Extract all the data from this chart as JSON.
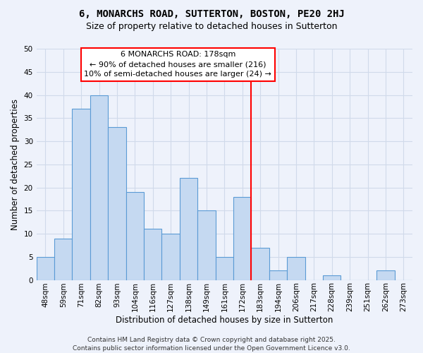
{
  "title": "6, MONARCHS ROAD, SUTTERTON, BOSTON, PE20 2HJ",
  "subtitle": "Size of property relative to detached houses in Sutterton",
  "xlabel": "Distribution of detached houses by size in Sutterton",
  "ylabel": "Number of detached properties",
  "footer_lines": [
    "Contains HM Land Registry data © Crown copyright and database right 2025.",
    "Contains public sector information licensed under the Open Government Licence v3.0."
  ],
  "bin_labels": [
    "48sqm",
    "59sqm",
    "71sqm",
    "82sqm",
    "93sqm",
    "104sqm",
    "116sqm",
    "127sqm",
    "138sqm",
    "149sqm",
    "161sqm",
    "172sqm",
    "183sqm",
    "194sqm",
    "206sqm",
    "217sqm",
    "228sqm",
    "239sqm",
    "251sqm",
    "262sqm",
    "273sqm"
  ],
  "bar_values": [
    5,
    9,
    37,
    40,
    33,
    19,
    11,
    10,
    22,
    15,
    5,
    18,
    7,
    2,
    5,
    0,
    1,
    0,
    0,
    2,
    0
  ],
  "bar_color": "#c5d9f1",
  "bar_edge_color": "#5b9bd5",
  "grid_color": "#d0daea",
  "background_color": "#eef2fb",
  "vline_x": 11.5,
  "vline_color": "red",
  "annotation_title": "6 MONARCHS ROAD: 178sqm",
  "annotation_line1": "← 90% of detached houses are smaller (216)",
  "annotation_line2": "10% of semi-detached houses are larger (24) →",
  "ylim": [
    0,
    50
  ],
  "yticks": [
    0,
    5,
    10,
    15,
    20,
    25,
    30,
    35,
    40,
    45,
    50
  ],
  "title_fontsize": 10,
  "subtitle_fontsize": 9,
  "axis_label_fontsize": 8.5,
  "tick_fontsize": 7.5,
  "annotation_fontsize": 8,
  "footer_fontsize": 6.5
}
